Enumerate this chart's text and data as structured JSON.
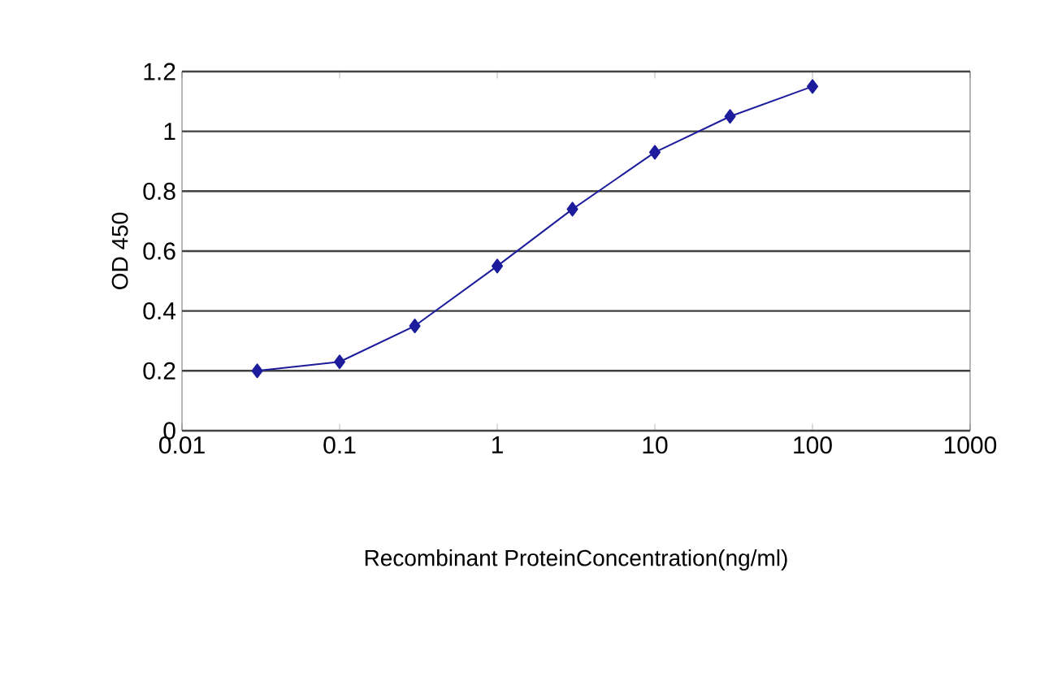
{
  "chart_data": {
    "type": "line",
    "xlabel": "Recombinant ProteinConcentration(ng/ml)",
    "ylabel": "OD 450",
    "x": [
      0.03,
      0.1,
      0.3,
      1,
      3,
      10,
      30,
      100
    ],
    "series": [
      {
        "color": "#1c1c9c",
        "values": [
          0.2,
          0.23,
          0.35,
          0.55,
          0.74,
          0.93,
          1.05,
          1.15
        ]
      }
    ],
    "xlim": [
      0.01,
      1000
    ],
    "xticks": [
      0.01,
      0.1,
      1,
      10,
      100,
      1000
    ],
    "ylim": [
      0,
      1.2
    ],
    "yticks": [
      0,
      0.2,
      0.4,
      0.6,
      0.8,
      1,
      1.2
    ],
    "log": "x",
    "grid": "y",
    "marker": "diamond",
    "line_style": "solid"
  }
}
